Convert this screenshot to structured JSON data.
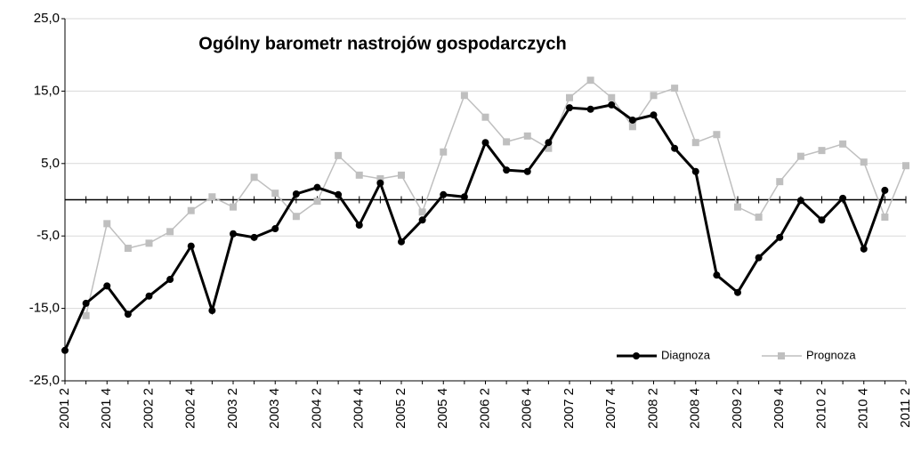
{
  "chart_data": {
    "type": "line",
    "title": "Ogólny barometr nastrojów gospodarczych",
    "categories": [
      "2001 2",
      null,
      "2001 4",
      null,
      "2002 2",
      null,
      "2002 4",
      null,
      "2003 2",
      null,
      "2003 4",
      null,
      "2004 2",
      null,
      "2004 4",
      null,
      "2005 2",
      null,
      "2005 4",
      null,
      "2006 2",
      null,
      "2006 4",
      null,
      "2007 2",
      null,
      "2007 4",
      null,
      "2008 2",
      null,
      "2008 4",
      null,
      "2009 2",
      null,
      "2009 4",
      null,
      "2010 2",
      null,
      "2010 4",
      null,
      "2011 2"
    ],
    "series": [
      {
        "name": "Diagnoza",
        "color": "#000000",
        "marker": "circle",
        "values": [
          -20.8,
          -14.3,
          -11.9,
          -15.8,
          -13.3,
          -11.0,
          -6.4,
          -15.3,
          -4.7,
          -5.2,
          -4.0,
          0.8,
          1.7,
          0.7,
          -3.5,
          2.3,
          -5.8,
          -2.8,
          0.7,
          0.4,
          7.9,
          4.1,
          3.9,
          7.9,
          12.7,
          12.5,
          13.1,
          11.0,
          11.7,
          7.1,
          3.9,
          -10.4,
          -12.8,
          -8.0,
          -5.2,
          -0.1,
          -2.8,
          0.2,
          -6.8,
          1.3,
          null
        ]
      },
      {
        "name": "Prognoza",
        "color": "#bfbfbf",
        "marker": "square",
        "values": [
          null,
          -16.0,
          -3.3,
          -6.7,
          -6.0,
          -4.4,
          -1.5,
          0.4,
          -1.0,
          3.1,
          0.9,
          -2.3,
          -0.2,
          6.1,
          3.4,
          2.9,
          3.4,
          -1.7,
          6.6,
          14.4,
          11.4,
          8.0,
          8.8,
          7.1,
          14.1,
          16.5,
          14.1,
          10.1,
          14.4,
          15.4,
          7.9,
          9.0,
          -1.0,
          -2.4,
          2.5,
          6.0,
          6.8,
          7.7,
          5.2,
          -2.4,
          4.7
        ]
      }
    ],
    "ylim": [
      -25,
      25
    ],
    "yticks": [
      {
        "value": -25,
        "label": "-25,0"
      },
      {
        "value": -15,
        "label": "-15,0"
      },
      {
        "value": -5,
        "label": "-5,0"
      },
      {
        "value": 5,
        "label": "5,0"
      },
      {
        "value": 15,
        "label": "15,0"
      },
      {
        "value": 25,
        "label": "25,0"
      }
    ],
    "grid": true,
    "legend": "lower right"
  }
}
